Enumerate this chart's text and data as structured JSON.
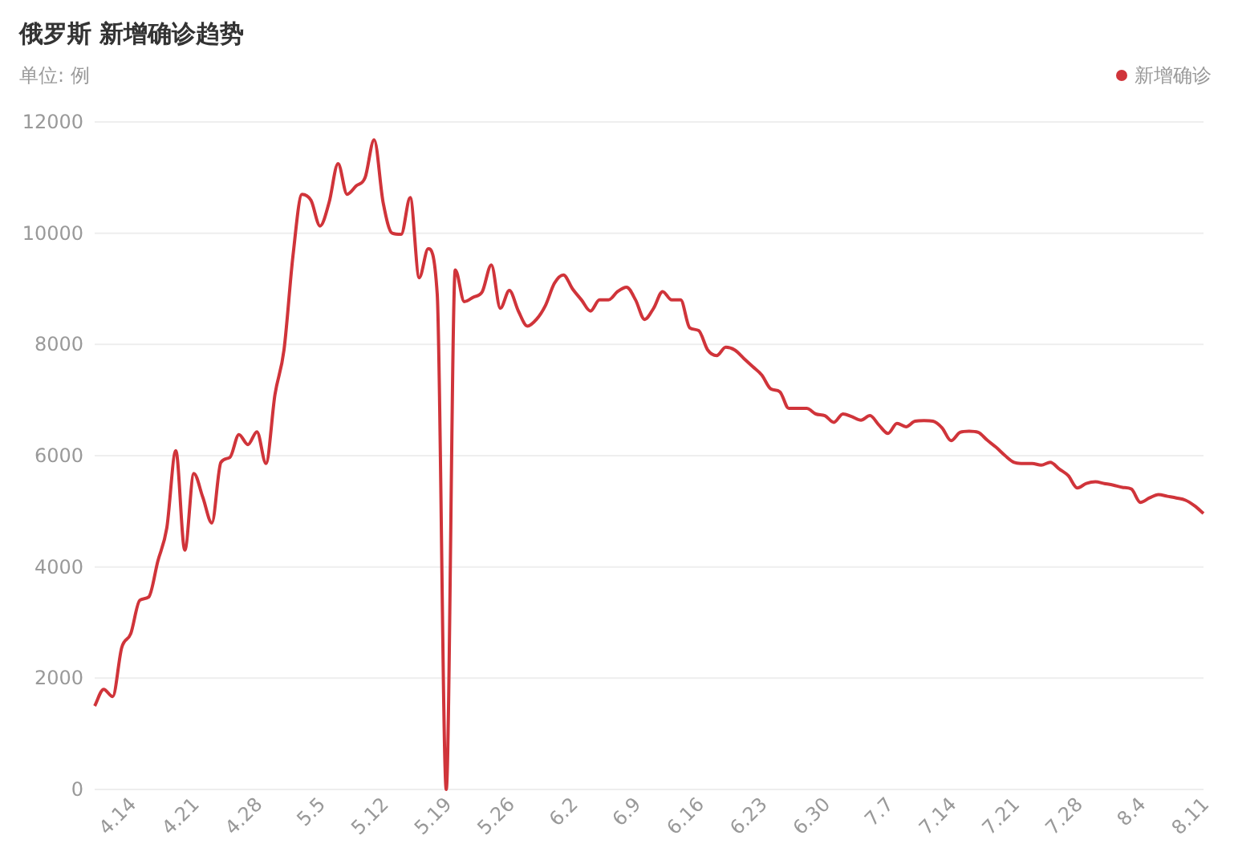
{
  "chart_data": {
    "type": "line",
    "title": "俄罗斯 新增确诊趋势",
    "ylabel": "单位: 例",
    "categories": [
      null,
      null,
      null,
      null,
      "4.14",
      null,
      null,
      null,
      null,
      null,
      null,
      "4.21",
      null,
      null,
      null,
      null,
      null,
      null,
      "4.28",
      null,
      null,
      null,
      null,
      null,
      null,
      "5.5",
      null,
      null,
      null,
      null,
      null,
      null,
      "5.12",
      null,
      null,
      null,
      null,
      null,
      null,
      "5.19",
      null,
      null,
      null,
      null,
      null,
      null,
      "5.26",
      null,
      null,
      null,
      null,
      null,
      null,
      "6.2",
      null,
      null,
      null,
      null,
      null,
      null,
      "6.9",
      null,
      null,
      null,
      null,
      null,
      null,
      "6.16",
      null,
      null,
      null,
      null,
      null,
      null,
      "6.23",
      null,
      null,
      null,
      null,
      null,
      null,
      "6.30",
      null,
      null,
      null,
      null,
      null,
      null,
      "7.7",
      null,
      null,
      null,
      null,
      null,
      null,
      "7.14",
      null,
      null,
      null,
      null,
      null,
      null,
      "7.21",
      null,
      null,
      null,
      null,
      null,
      null,
      "7.28",
      null,
      null,
      null,
      null,
      null,
      null,
      "8.4",
      null,
      null,
      null,
      null,
      null,
      null,
      "8.11"
    ],
    "series": [
      {
        "name": "新增确诊",
        "color": "#d0343a",
        "values": [
          1500,
          1800,
          1670,
          2550,
          2800,
          3400,
          3460,
          4100,
          4700,
          6090,
          4300,
          5680,
          5250,
          4790,
          5880,
          5970,
          6380,
          6200,
          6430,
          5860,
          7100,
          7900,
          9600,
          10700,
          10590,
          10130,
          10550,
          11250,
          10700,
          10850,
          11000,
          11680,
          10550,
          10000,
          9980,
          10640,
          9200,
          9720,
          8900,
          0,
          9340,
          8770,
          8850,
          8950,
          9430,
          8650,
          8970,
          8600,
          8330,
          8450,
          8700,
          9100,
          9250,
          9000,
          8800,
          8600,
          8800,
          8800,
          8950,
          9030,
          8800,
          8450,
          8650,
          8950,
          8800,
          8800,
          8300,
          8250,
          7900,
          7800,
          7950,
          7900,
          7750,
          7600,
          7450,
          7200,
          7150,
          6850,
          6850,
          6850,
          6750,
          6720,
          6600,
          6750,
          6700,
          6640,
          6720,
          6550,
          6400,
          6580,
          6520,
          6620,
          6630,
          6620,
          6500,
          6270,
          6420,
          6440,
          6420,
          6280,
          6150,
          6000,
          5880,
          5860,
          5860,
          5830,
          5880,
          5760,
          5640,
          5420,
          5500,
          5530,
          5500,
          5470,
          5430,
          5400,
          5160,
          5240,
          5300,
          5270,
          5240,
          5200,
          5100,
          4960
        ]
      }
    ],
    "ylim": [
      0,
      12000
    ],
    "yticks": [
      0,
      2000,
      4000,
      6000,
      8000,
      10000,
      12000
    ],
    "grid": "y",
    "legend": "top right"
  }
}
